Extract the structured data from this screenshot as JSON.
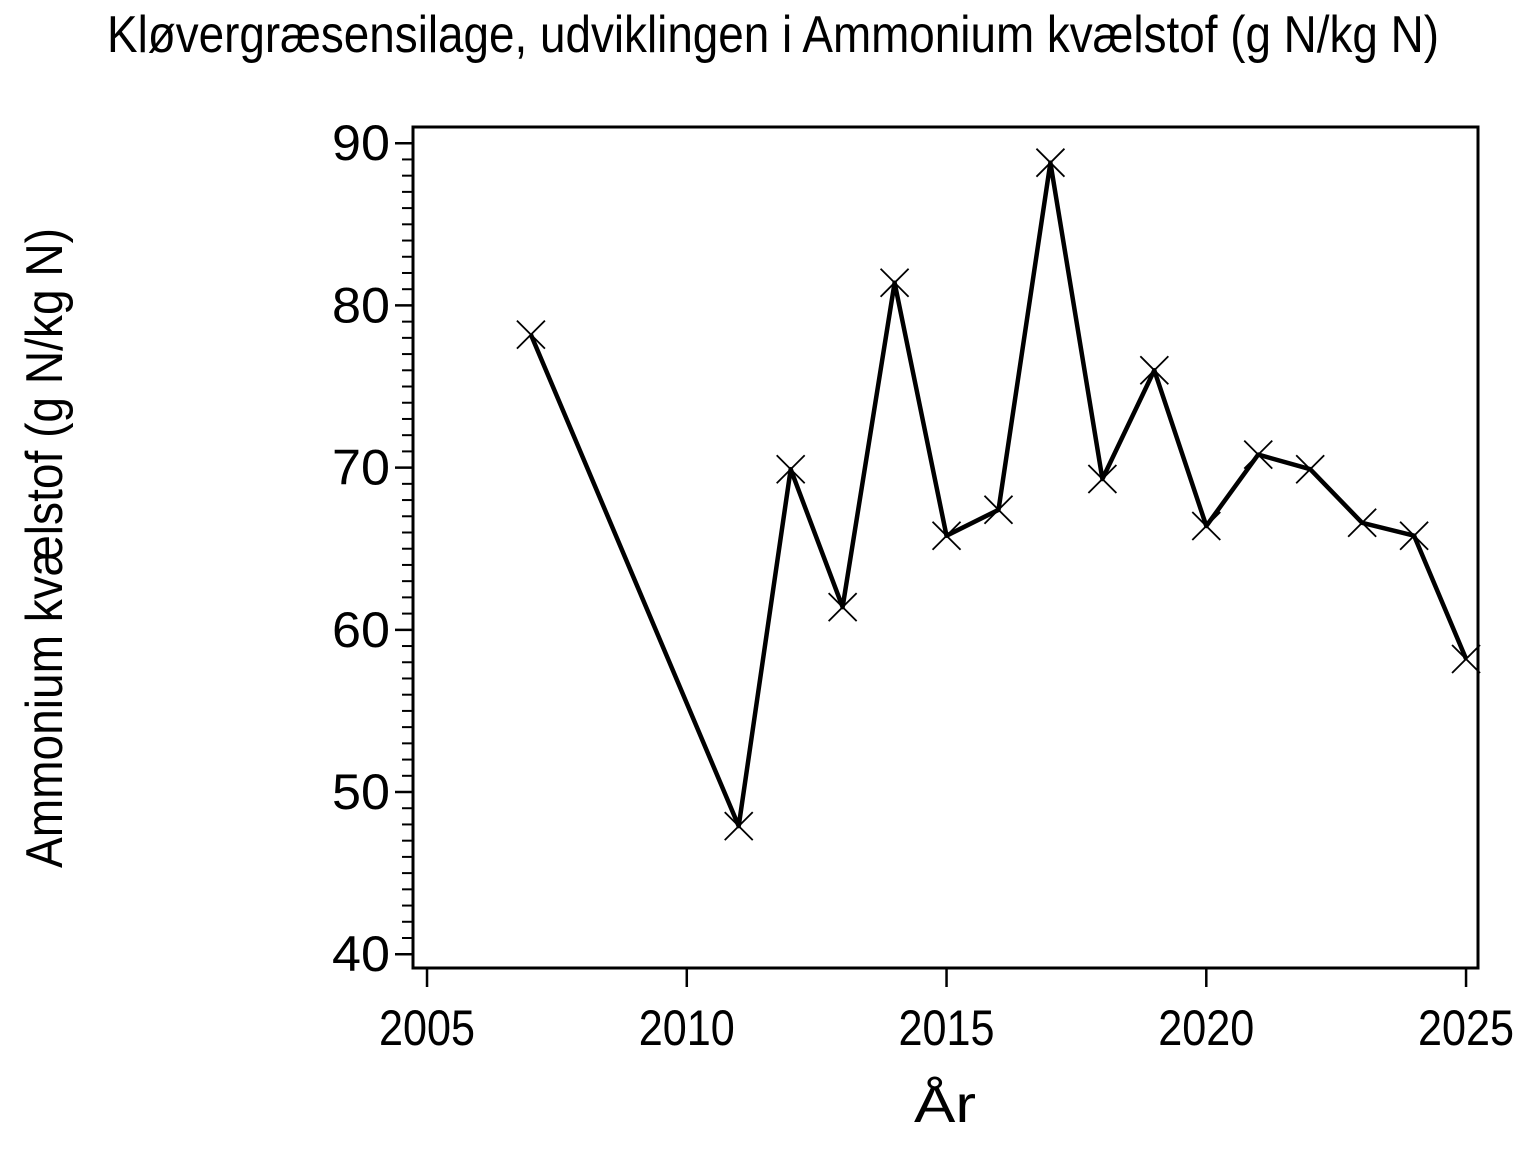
{
  "chart_data": {
    "type": "line",
    "title": "Kløvergræsensilage, udviklingen i Ammonium kvælstof (g N/kg N)",
    "xlabel": "År",
    "ylabel": "Ammonium kvælstof (g N/kg N)",
    "x": [
      2007,
      2011,
      2012,
      2013,
      2014,
      2015,
      2016,
      2017,
      2018,
      2019,
      2020,
      2021,
      2022,
      2023,
      2024,
      2025
    ],
    "y": [
      78.2,
      47.9,
      69.9,
      61.4,
      81.4,
      65.8,
      67.4,
      88.8,
      69.3,
      76.0,
      66.4,
      70.8,
      69.9,
      66.6,
      65.8,
      58.2
    ],
    "x_ticks": [
      2005,
      2010,
      2015,
      2020,
      2025
    ],
    "y_ticks": [
      40,
      50,
      60,
      70,
      80,
      90
    ],
    "y_minor_step": 1,
    "xlim": [
      2004.73,
      2025.23
    ],
    "ylim": [
      39.15,
      91.0
    ],
    "marker": "x",
    "grid": false,
    "legend": null,
    "line_color": "#000000",
    "background_color": "#ffffff"
  }
}
